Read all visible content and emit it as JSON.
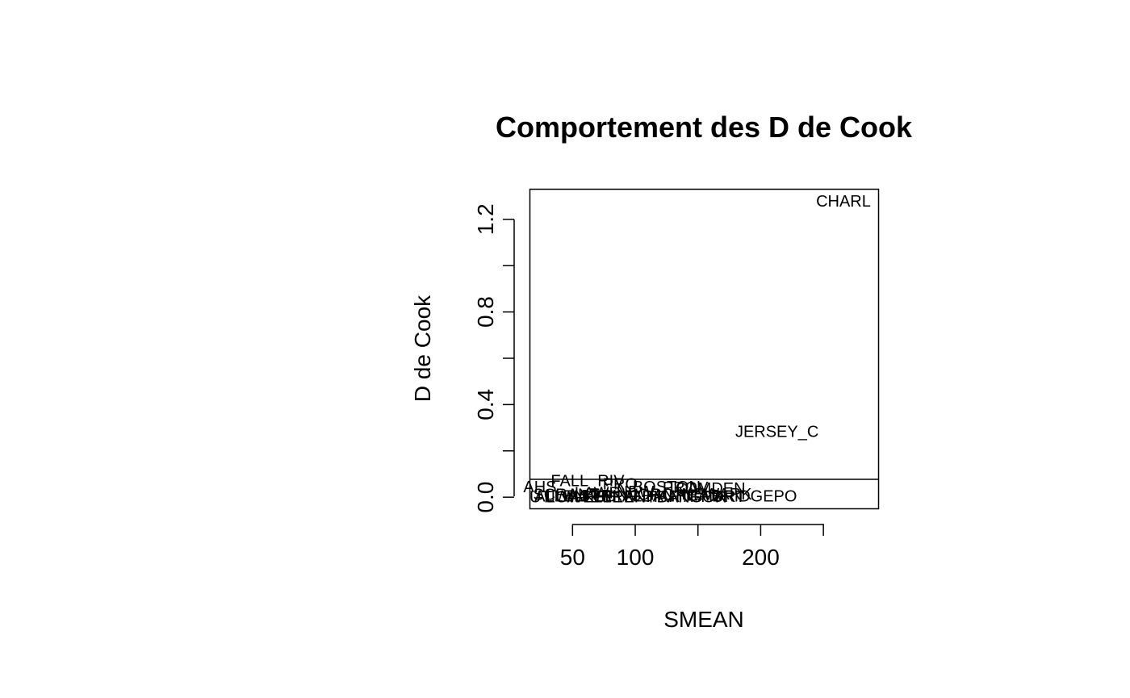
{
  "chart_data": {
    "type": "scatter",
    "title": "Comportement des D de Cook",
    "xlabel": "SMEAN",
    "ylabel": "D de Cook",
    "xlim": [
      16,
      294
    ],
    "ylim": [
      -0.05,
      1.33
    ],
    "x_ticks": [
      {
        "value": 50,
        "label": "50"
      },
      {
        "value": 100,
        "label": "100"
      },
      {
        "value": 150,
        "label": ""
      },
      {
        "value": 200,
        "label": "200"
      },
      {
        "value": 250,
        "label": ""
      }
    ],
    "y_ticks": [
      {
        "value": 0.0,
        "label": "0.0"
      },
      {
        "value": 0.2,
        "label": ""
      },
      {
        "value": 0.4,
        "label": "0.4"
      },
      {
        "value": 0.6,
        "label": ""
      },
      {
        "value": 0.8,
        "label": "0.8"
      },
      {
        "value": 1.0,
        "label": ""
      },
      {
        "value": 1.2,
        "label": "1.2"
      }
    ],
    "reference_line": {
      "y": 0.077
    },
    "grid": false,
    "points": [
      {
        "label": "CHARL",
        "x": 266,
        "y": 1.28
      },
      {
        "label": "JERSEY_C",
        "x": 213,
        "y": 0.285
      },
      {
        "label": "BRIDGEPO",
        "x": 195,
        "y": 0.005
      },
      {
        "label": "FALL_RIV",
        "x": 62,
        "y": 0.072
      },
      {
        "label": "AHS",
        "x": 24,
        "y": 0.045
      },
      {
        "label": "PRO",
        "x": 88,
        "y": 0.058
      },
      {
        "label": "BOSTON",
        "x": 125,
        "y": 0.045
      },
      {
        "label": "CAMDEN",
        "x": 160,
        "y": 0.038
      },
      {
        "label": "PROV",
        "x": 140,
        "y": 0.042
      },
      {
        "label": "NEW",
        "x": 100,
        "y": 0.025
      },
      {
        "label": "LAWR",
        "x": 70,
        "y": 0.02
      },
      {
        "label": "WORC",
        "x": 110,
        "y": 0.012
      },
      {
        "label": "READ",
        "x": 150,
        "y": 0.01
      },
      {
        "label": "ALLEN",
        "x": 40,
        "y": 0.005
      },
      {
        "label": "LOWELL",
        "x": 55,
        "y": 0.003
      },
      {
        "label": "SPRING",
        "x": 80,
        "y": 0.008
      },
      {
        "label": "HARTF",
        "x": 130,
        "y": 0.004
      },
      {
        "label": "NEWARK",
        "x": 165,
        "y": 0.015
      },
      {
        "label": "TRENT",
        "x": 95,
        "y": 0.002
      },
      {
        "label": "SCRANT",
        "x": 45,
        "y": 0.012
      },
      {
        "label": "WILKES",
        "x": 60,
        "y": 0.006
      },
      {
        "label": "ERIE",
        "x": 75,
        "y": 0.002
      },
      {
        "label": "ALBANY",
        "x": 115,
        "y": 0.006
      },
      {
        "label": "UTICA",
        "x": 35,
        "y": 0.002
      },
      {
        "label": "BANGOR",
        "x": 145,
        "y": 0.002
      },
      {
        "label": "PORT",
        "x": 170,
        "y": 0.004
      }
    ]
  }
}
